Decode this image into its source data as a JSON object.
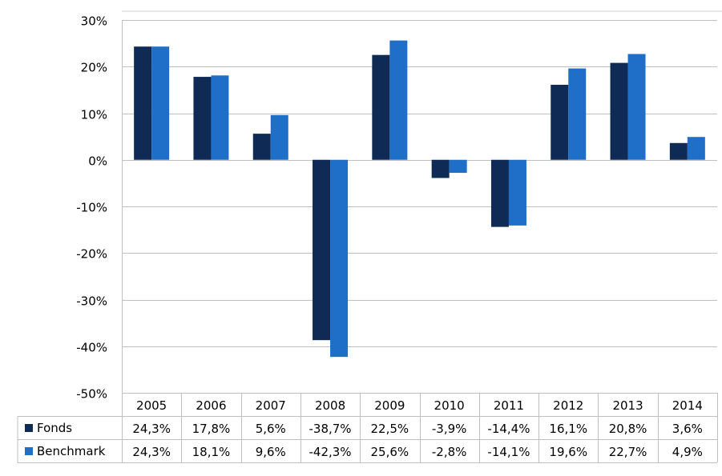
{
  "chart_data": {
    "type": "bar",
    "title": "",
    "xlabel": "",
    "ylabel": "",
    "categories": [
      "2005",
      "2006",
      "2007",
      "2008",
      "2009",
      "2010",
      "2011",
      "2012",
      "2013",
      "2014"
    ],
    "ylim": [
      -50,
      30
    ],
    "yticks": [
      30,
      20,
      10,
      0,
      -10,
      -20,
      -30,
      -40,
      -50
    ],
    "ytick_labels": [
      "30%",
      "20%",
      "10%",
      "0%",
      "-10%",
      "-20%",
      "-30%",
      "-40%",
      "-50%"
    ],
    "grid": true,
    "legend_placement": "data-table",
    "series": [
      {
        "name": "Fonds",
        "color": "#0e2a55",
        "values": [
          24.3,
          17.8,
          5.6,
          -38.7,
          22.5,
          -3.9,
          -14.4,
          16.1,
          20.8,
          3.6
        ],
        "labels": [
          "24,3%",
          "17,8%",
          "5,6%",
          "-38,7%",
          "22,5%",
          "-3,9%",
          "-14,4%",
          "16,1%",
          "20,8%",
          "3,6%"
        ]
      },
      {
        "name": "Benchmark",
        "color": "#1f6fc8",
        "values": [
          24.3,
          18.1,
          9.6,
          -42.3,
          25.6,
          -2.8,
          -14.1,
          19.6,
          22.7,
          4.9
        ],
        "labels": [
          "24,3%",
          "18,1%",
          "9,6%",
          "-42,3%",
          "25,6%",
          "-2,8%",
          "-14,1%",
          "19,6%",
          "22,7%",
          "4,9%"
        ]
      }
    ]
  }
}
